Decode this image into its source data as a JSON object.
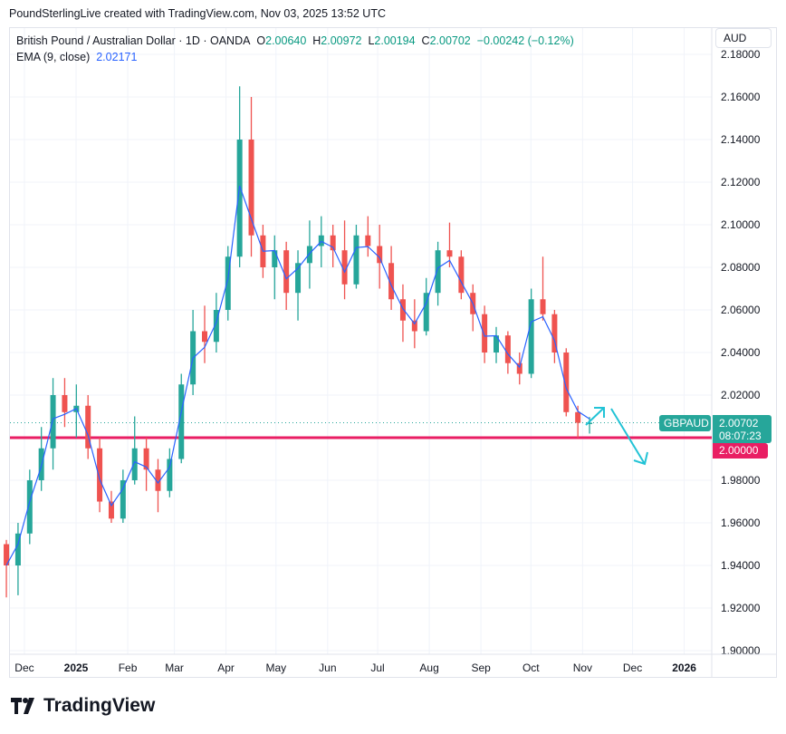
{
  "credit": "PoundSterlingLive created with TradingView.com, Nov 03, 2025 13:52 UTC",
  "legend": {
    "symbol": "British Pound / Australian Dollar · 1D · OANDA",
    "o_label": "O",
    "o": "2.00640",
    "h_label": "H",
    "h": "2.00972",
    "l_label": "L",
    "l": "2.00194",
    "c_label": "C",
    "c": "2.00702",
    "change": "−0.00242 (−0.12%)",
    "ema_label": "EMA (9, close)",
    "ema_value": "2.02171"
  },
  "currency_button": "AUD",
  "ticker_tag": "GBPAUD",
  "last_price": "2.00702",
  "countdown": "08:07:23",
  "level_label": "2.00000",
  "logo": "TradingView",
  "colors": {
    "up": "#26a69a",
    "down": "#ef5350",
    "ema": "#2962ff",
    "level": "#e91e63",
    "arrows": "#22c3d6",
    "grid": "#f0f3fa"
  },
  "chart_data": {
    "type": "candlestick",
    "note_interval": "weekly approximation of daily candles",
    "ylim": [
      1.9,
      2.18
    ],
    "yticks": [
      "2.18000",
      "2.16000",
      "2.14000",
      "2.12000",
      "2.10000",
      "2.08000",
      "2.06000",
      "2.04000",
      "2.02000",
      "2.00000",
      "1.98000",
      "1.96000",
      "1.94000",
      "1.92000",
      "1.90000"
    ],
    "xticks": [
      {
        "label": "Dec",
        "date": "2024-12-01"
      },
      {
        "label": "2025",
        "date": "2025-01-01"
      },
      {
        "label": "Feb",
        "date": "2025-02-01"
      },
      {
        "label": "Mar",
        "date": "2025-03-01"
      },
      {
        "label": "Apr",
        "date": "2025-04-01"
      },
      {
        "label": "May",
        "date": "2025-05-01"
      },
      {
        "label": "Jun",
        "date": "2025-06-01"
      },
      {
        "label": "Jul",
        "date": "2025-07-01"
      },
      {
        "label": "Aug",
        "date": "2025-08-01"
      },
      {
        "label": "Sep",
        "date": "2025-09-01"
      },
      {
        "label": "Oct",
        "date": "2025-10-01"
      },
      {
        "label": "Nov",
        "date": "2025-11-01"
      },
      {
        "label": "Dec",
        "date": "2025-12-01"
      },
      {
        "label": "2026",
        "date": "2026-01-01"
      }
    ],
    "horizontal_level": 2.0,
    "last_close": 2.00702,
    "candles": [
      [
        "2024-11-18",
        1.95,
        1.952,
        1.925,
        1.94
      ],
      [
        "2024-11-25",
        1.94,
        1.96,
        1.926,
        1.955
      ],
      [
        "2024-12-02",
        1.955,
        1.985,
        1.95,
        1.98
      ],
      [
        "2024-12-09",
        1.98,
        2.005,
        1.975,
        1.995
      ],
      [
        "2024-12-16",
        1.995,
        2.028,
        1.985,
        2.02
      ],
      [
        "2024-12-23",
        2.02,
        2.028,
        2.005,
        2.012
      ],
      [
        "2024-12-30",
        2.012,
        2.025,
        2.0,
        2.015
      ],
      [
        "2025-01-06",
        2.015,
        2.02,
        1.99,
        1.995
      ],
      [
        "2025-01-13",
        1.995,
        2.0,
        1.965,
        1.97
      ],
      [
        "2025-01-20",
        1.97,
        1.975,
        1.96,
        1.962
      ],
      [
        "2025-01-27",
        1.962,
        1.985,
        1.96,
        1.98
      ],
      [
        "2025-02-03",
        1.98,
        2.01,
        1.978,
        1.995
      ],
      [
        "2025-02-10",
        1.995,
        2.0,
        1.975,
        1.985
      ],
      [
        "2025-02-17",
        1.985,
        1.99,
        1.965,
        1.975
      ],
      [
        "2025-02-24",
        1.975,
        1.995,
        1.972,
        1.99
      ],
      [
        "2025-03-03",
        1.99,
        2.03,
        1.988,
        2.025
      ],
      [
        "2025-03-10",
        2.025,
        2.06,
        2.02,
        2.05
      ],
      [
        "2025-03-17",
        2.05,
        2.062,
        2.035,
        2.045
      ],
      [
        "2025-03-24",
        2.045,
        2.068,
        2.04,
        2.06
      ],
      [
        "2025-03-31",
        2.06,
        2.09,
        2.055,
        2.085
      ],
      [
        "2025-04-07",
        2.085,
        2.165,
        2.08,
        2.14
      ],
      [
        "2025-04-14",
        2.14,
        2.16,
        2.085,
        2.095
      ],
      [
        "2025-04-21",
        2.095,
        2.1,
        2.075,
        2.08
      ],
      [
        "2025-04-28",
        2.08,
        2.095,
        2.065,
        2.088
      ],
      [
        "2025-05-05",
        2.088,
        2.092,
        2.06,
        2.068
      ],
      [
        "2025-05-12",
        2.068,
        2.088,
        2.055,
        2.082
      ],
      [
        "2025-05-19",
        2.082,
        2.102,
        2.07,
        2.09
      ],
      [
        "2025-05-26",
        2.09,
        2.104,
        2.08,
        2.095
      ],
      [
        "2025-06-02",
        2.095,
        2.1,
        2.08,
        2.088
      ],
      [
        "2025-06-09",
        2.088,
        2.102,
        2.065,
        2.072
      ],
      [
        "2025-06-16",
        2.072,
        2.1,
        2.07,
        2.095
      ],
      [
        "2025-06-23",
        2.095,
        2.104,
        2.085,
        2.09
      ],
      [
        "2025-06-30",
        2.09,
        2.1,
        2.07,
        2.082
      ],
      [
        "2025-07-07",
        2.082,
        2.09,
        2.06,
        2.065
      ],
      [
        "2025-07-14",
        2.065,
        2.072,
        2.045,
        2.055
      ],
      [
        "2025-07-21",
        2.055,
        2.065,
        2.042,
        2.05
      ],
      [
        "2025-07-28",
        2.05,
        2.075,
        2.048,
        2.068
      ],
      [
        "2025-08-04",
        2.068,
        2.092,
        2.062,
        2.088
      ],
      [
        "2025-08-11",
        2.088,
        2.101,
        2.08,
        2.085
      ],
      [
        "2025-08-18",
        2.085,
        2.088,
        2.065,
        2.068
      ],
      [
        "2025-08-25",
        2.068,
        2.072,
        2.05,
        2.058
      ],
      [
        "2025-09-01",
        2.058,
        2.062,
        2.035,
        2.04
      ],
      [
        "2025-09-08",
        2.04,
        2.052,
        2.035,
        2.048
      ],
      [
        "2025-09-15",
        2.048,
        2.05,
        2.03,
        2.035
      ],
      [
        "2025-09-22",
        2.035,
        2.04,
        2.025,
        2.03
      ],
      [
        "2025-09-29",
        2.03,
        2.07,
        2.028,
        2.065
      ],
      [
        "2025-10-06",
        2.065,
        2.085,
        2.055,
        2.058
      ],
      [
        "2025-10-13",
        2.058,
        2.06,
        2.035,
        2.04
      ],
      [
        "2025-10-20",
        2.04,
        2.042,
        2.01,
        2.012
      ],
      [
        "2025-10-27",
        2.012,
        2.015,
        2.0,
        2.007
      ],
      [
        "2025-11-03",
        2.0064,
        2.00972,
        2.00194,
        2.00702
      ]
    ]
  }
}
